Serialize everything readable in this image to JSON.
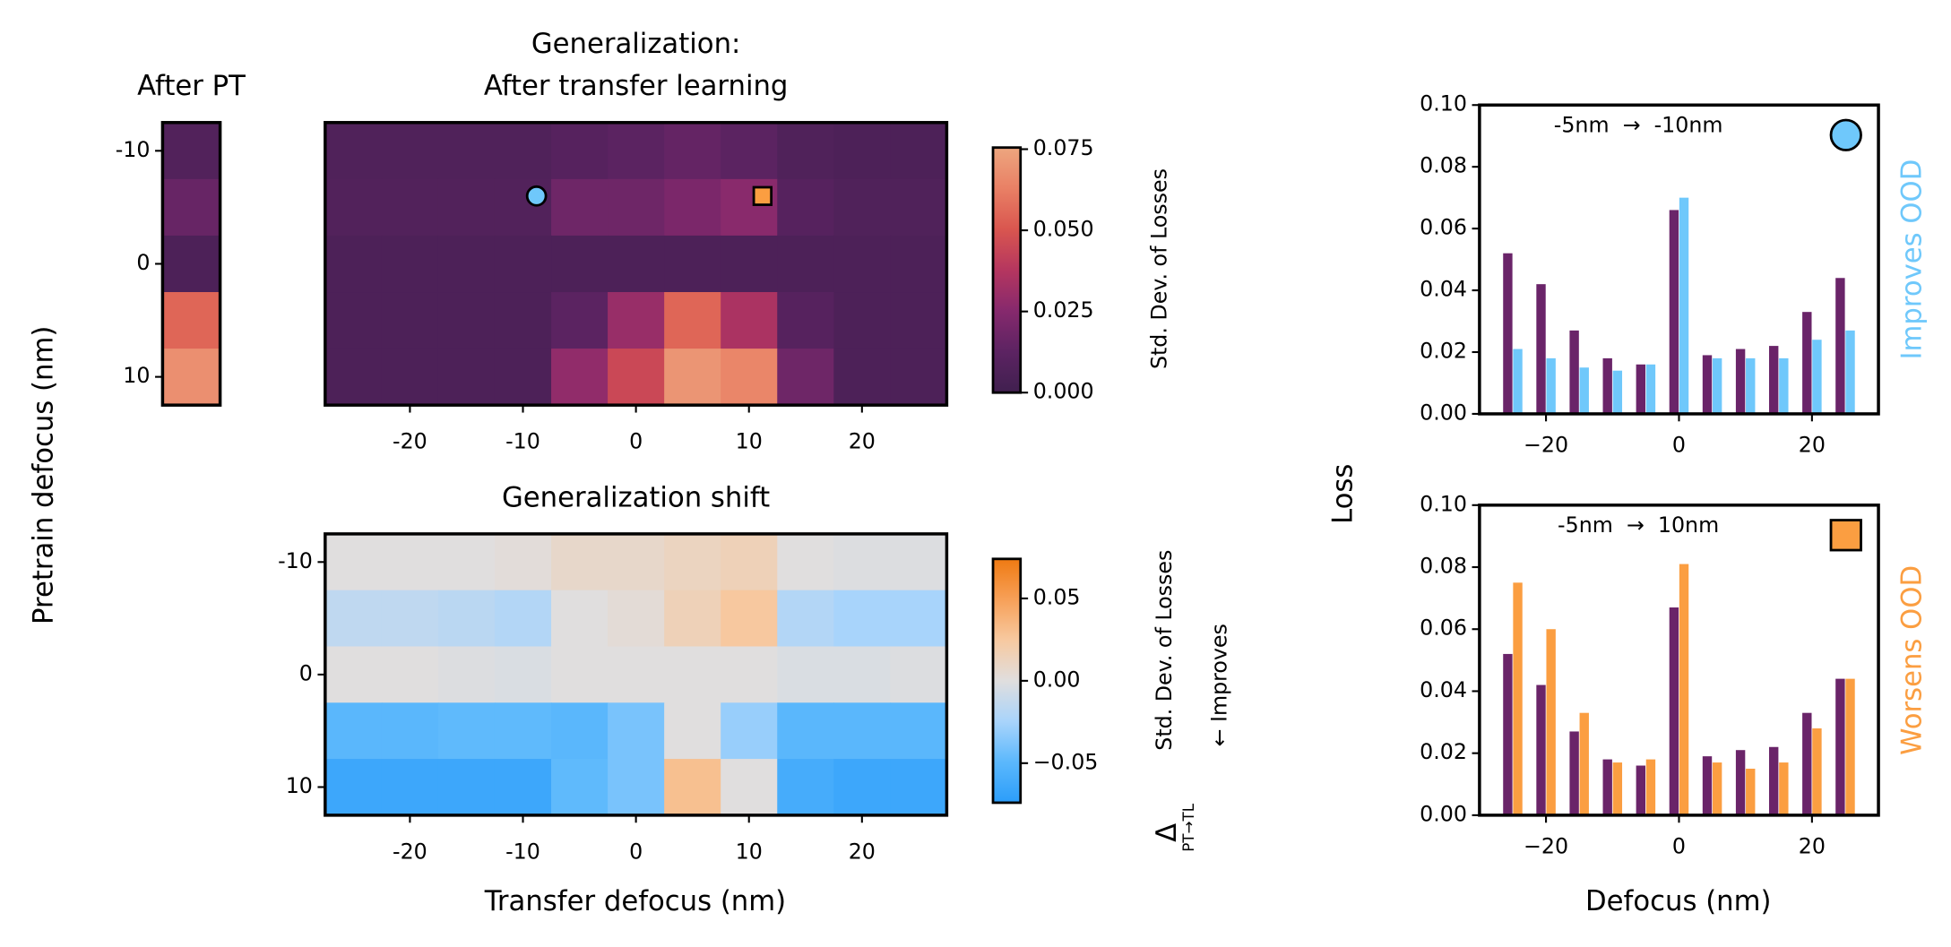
{
  "chart_data": [
    {
      "type": "heatmap",
      "title": [
        "After PT"
      ],
      "ylabel": "Pretrain defocus (nm)",
      "y": [
        -10,
        -5,
        0,
        5,
        10
      ],
      "ylim": [
        12.5,
        -12.5
      ],
      "yticks": [
        -10,
        0,
        10
      ],
      "values": [
        [
          0.008
        ],
        [
          0.016
        ],
        [
          0.006
        ],
        [
          0.055
        ],
        [
          0.068
        ]
      ],
      "colormap": [
        "#40204f",
        "#5c2362",
        "#86296d",
        "#b5365f",
        "#d9564f",
        "#e98065",
        "#eda67f"
      ],
      "clim": [
        0,
        0.0755
      ]
    },
    {
      "type": "heatmap",
      "title": [
        "Generalization:",
        "After transfer learning"
      ],
      "x": [
        -25,
        -20,
        -15,
        -10,
        -5,
        0,
        5,
        10,
        15,
        20,
        25
      ],
      "xlim": [
        -27.5,
        27.5
      ],
      "xticks": [
        -20,
        -10,
        0,
        10,
        20
      ],
      "y": [
        -10,
        -5,
        0,
        5,
        10
      ],
      "ylim": [
        12.5,
        -12.5
      ],
      "values": [
        [
          0.007,
          0.007,
          0.007,
          0.007,
          0.01,
          0.012,
          0.015,
          0.012,
          0.007,
          0.006,
          0.006
        ],
        [
          0.008,
          0.008,
          0.008,
          0.008,
          0.018,
          0.018,
          0.022,
          0.026,
          0.01,
          0.007,
          0.007
        ],
        [
          0.006,
          0.006,
          0.006,
          0.006,
          0.006,
          0.006,
          0.006,
          0.006,
          0.006,
          0.006,
          0.006
        ],
        [
          0.006,
          0.006,
          0.006,
          0.006,
          0.012,
          0.03,
          0.055,
          0.035,
          0.01,
          0.006,
          0.006
        ],
        [
          0.006,
          0.006,
          0.006,
          0.006,
          0.028,
          0.045,
          0.07,
          0.065,
          0.018,
          0.006,
          0.006
        ]
      ],
      "colormap": [
        "#40204f",
        "#5c2362",
        "#86296d",
        "#b5365f",
        "#d9564f",
        "#e98065",
        "#eda67f"
      ],
      "clim": [
        0,
        0.0755
      ],
      "colorbar_ticks": [
        {
          "value": 0,
          "label": "0.000"
        },
        0.025,
        {
          "value": 0.05,
          "label": "0.050"
        },
        0.075
      ],
      "colorbar_label": "Std. Dev. of Losses",
      "markers": [
        {
          "x": -8.8,
          "y": -6,
          "shape": "circle",
          "color": "#6fc8fb"
        },
        {
          "x": 11.2,
          "y": -6,
          "shape": "square",
          "color": "#fb9e41"
        }
      ]
    },
    {
      "type": "heatmap",
      "title": [
        "Generalization shift"
      ],
      "xlabel": "Transfer defocus (nm)",
      "x": [
        -25,
        -20,
        -15,
        -10,
        -5,
        0,
        5,
        10,
        15,
        20,
        25
      ],
      "xlim": [
        -27.5,
        27.5
      ],
      "xticks": [
        -20,
        -10,
        0,
        10,
        20
      ],
      "y": [
        -10,
        -5,
        0,
        5,
        10
      ],
      "ylim": [
        12.5,
        -12.5
      ],
      "yticks": [
        -10,
        0,
        10
      ],
      "values": [
        [
          0,
          0,
          0,
          0.002,
          0.008,
          0.008,
          0.012,
          0.015,
          0,
          -0.002,
          -0.002
        ],
        [
          -0.015,
          -0.015,
          -0.017,
          -0.02,
          0,
          0.003,
          0.015,
          0.025,
          -0.02,
          -0.025,
          -0.025
        ],
        [
          0,
          0,
          -0.002,
          -0.003,
          0,
          0,
          0,
          0,
          -0.003,
          -0.003,
          -0.002
        ],
        [
          -0.05,
          -0.05,
          -0.048,
          -0.048,
          -0.05,
          -0.04,
          0,
          -0.03,
          -0.05,
          -0.05,
          -0.05
        ],
        [
          -0.065,
          -0.065,
          -0.065,
          -0.065,
          -0.048,
          -0.04,
          0.03,
          0,
          -0.06,
          -0.065,
          -0.065
        ]
      ],
      "colormap": [
        "#2b9dfa",
        "#5bb8fc",
        "#a9d4fb",
        "#e0dede",
        "#f7c9a0",
        "#f7a058",
        "#ef7a12"
      ],
      "clim": [
        -0.074,
        0.074
      ],
      "colorbar_ticks": [
        {
          "value": -0.05,
          "label": "−0.05"
        },
        {
          "value": 0,
          "label": "0.00"
        },
        0.05
      ],
      "colorbar_symbol": "Δ",
      "colorbar_subscript": "PT→TL",
      "colorbar_label": "Std. Dev. of Losses",
      "colorbar_note": "← Improves"
    },
    {
      "type": "bar",
      "ylabel": "Loss",
      "annotation": "-5nm  →  -10nm",
      "side_label": "Improves OOD",
      "side_label_color": "#6fc8fb",
      "marker": {
        "shape": "circle",
        "color": "#6fc8fb"
      },
      "x": [
        -25,
        -20,
        -15,
        -10,
        -5,
        0,
        5,
        10,
        15,
        20,
        25
      ],
      "xlim": [
        -30,
        30
      ],
      "xticks": [
        {
          "value": -20,
          "label": "−20"
        },
        0,
        20
      ],
      "ylim": [
        0,
        0.1
      ],
      "yticks": [
        {
          "value": 0,
          "label": "0.00"
        },
        {
          "value": 0.02,
          "label": "0.02"
        },
        {
          "value": 0.04,
          "label": "0.04"
        },
        {
          "value": 0.06,
          "label": "0.06"
        },
        {
          "value": 0.08,
          "label": "0.08"
        },
        {
          "value": 0.1,
          "label": "0.10"
        }
      ],
      "series": [
        {
          "color": "#6a2469",
          "values": [
            0.052,
            0.042,
            0.027,
            0.018,
            0.016,
            0.066,
            0.019,
            0.021,
            0.022,
            0.033,
            0.044
          ]
        },
        {
          "color": "#6fc8fb",
          "values": [
            0.021,
            0.018,
            0.015,
            0.014,
            0.016,
            0.07,
            0.018,
            0.018,
            0.018,
            0.024,
            0.027
          ]
        }
      ]
    },
    {
      "type": "bar",
      "xlabel": "Defocus (nm)",
      "annotation": "-5nm  →  10nm",
      "side_label": "Worsens OOD",
      "side_label_color": "#fb9e41",
      "marker": {
        "shape": "square",
        "color": "#fb9e41"
      },
      "x": [
        -25,
        -20,
        -15,
        -10,
        -5,
        0,
        5,
        10,
        15,
        20,
        25
      ],
      "xlim": [
        -30,
        30
      ],
      "xticks": [
        {
          "value": -20,
          "label": "−20"
        },
        0,
        20
      ],
      "ylim": [
        0,
        0.1
      ],
      "yticks": [
        {
          "value": 0,
          "label": "0.00"
        },
        {
          "value": 0.02,
          "label": "0.02"
        },
        {
          "value": 0.04,
          "label": "0.04"
        },
        {
          "value": 0.06,
          "label": "0.06"
        },
        {
          "value": 0.08,
          "label": "0.08"
        },
        {
          "value": 0.1,
          "label": "0.10"
        }
      ],
      "series": [
        {
          "color": "#6a2469",
          "values": [
            0.052,
            0.042,
            0.027,
            0.018,
            0.016,
            0.067,
            0.019,
            0.021,
            0.022,
            0.033,
            0.044
          ]
        },
        {
          "color": "#fb9e41",
          "values": [
            0.075,
            0.06,
            0.033,
            0.017,
            0.018,
            0.081,
            0.017,
            0.015,
            0.017,
            0.028,
            0.044
          ]
        }
      ]
    }
  ]
}
